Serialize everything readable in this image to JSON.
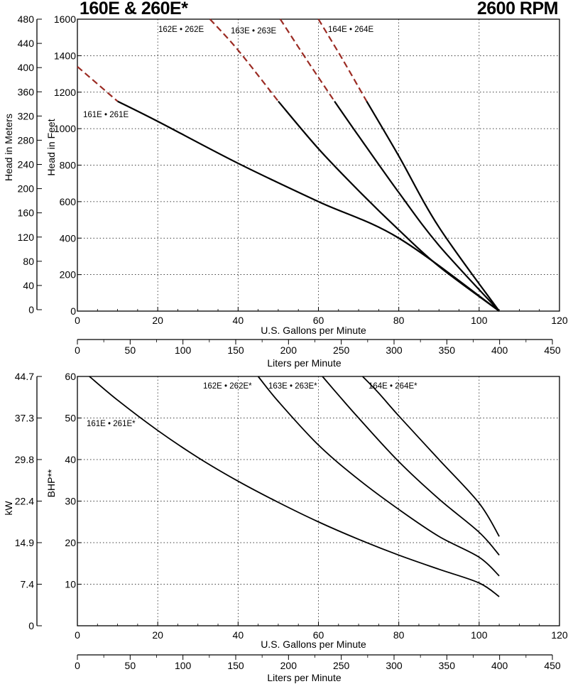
{
  "header": {
    "title": "160E & 260E*",
    "speed": "2600 RPM"
  },
  "chart_data": [
    {
      "type": "line",
      "title": "160E & 260E*",
      "xlabel": "U.S. Gallons per Minute",
      "ylabel": "Head in Feet",
      "ylabel_secondary": "Head in Meters",
      "xlabel_secondary": "Liters per Minute",
      "xlim": [
        0,
        120
      ],
      "ylim": [
        0,
        1600
      ],
      "x_ticks": [
        0,
        20,
        40,
        60,
        80,
        100,
        120
      ],
      "y_ticks": [
        0,
        200,
        400,
        600,
        800,
        1000,
        1200,
        1400,
        1600
      ],
      "y2_ticks": [
        "0",
        "40",
        "80",
        "120",
        "160",
        "200",
        "240",
        "280",
        "320",
        "360",
        "400",
        "440",
        "480"
      ],
      "x2_ticks": [
        "0",
        "50",
        "100",
        "150",
        "200",
        "250",
        "300",
        "350",
        "400",
        "450"
      ],
      "grid": true,
      "series": [
        {
          "name": "161E • 261E",
          "solid": {
            "x": [
              10,
              20,
              40,
              60,
              80,
              105
            ],
            "y": [
              1150,
              1040,
              810,
              600,
              400,
              0
            ]
          },
          "dashed": {
            "x": [
              0,
              10
            ],
            "y": [
              1340,
              1150
            ]
          }
        },
        {
          "name": "162E • 262E",
          "solid": {
            "x": [
              50,
              60,
              70,
              80,
              90,
              105
            ],
            "y": [
              1150,
              890,
              660,
              445,
              245,
              0
            ]
          },
          "dashed": {
            "x": [
              33,
              40,
              50
            ],
            "y": [
              1600,
              1430,
              1150
            ]
          }
        },
        {
          "name": "163E • 263E",
          "solid": {
            "x": [
              64,
              70,
              80,
              90,
              105
            ],
            "y": [
              1150,
              960,
              650,
              360,
              0
            ]
          },
          "dashed": {
            "x": [
              50.5,
              57,
              64
            ],
            "y": [
              1600,
              1380,
              1150
            ]
          }
        },
        {
          "name": "164E • 264E",
          "solid": {
            "x": [
              72,
              80,
              90,
              105
            ],
            "y": [
              1150,
              850,
              460,
              0
            ]
          },
          "dashed": {
            "x": [
              60,
              66,
              72
            ],
            "y": [
              1600,
              1380,
              1150
            ]
          }
        }
      ]
    },
    {
      "type": "line",
      "xlabel": "U.S. Gallons per Minute",
      "ylabel": "BHP**",
      "ylabel_secondary": "kW",
      "xlabel_secondary": "Liters per Minute",
      "xlim": [
        0,
        120
      ],
      "ylim": [
        0,
        60
      ],
      "x_ticks": [
        0,
        20,
        40,
        60,
        80,
        100,
        120
      ],
      "y_ticks": [
        10,
        20,
        30,
        40,
        50,
        60
      ],
      "y2_ticks": [
        "0",
        "7.4",
        "14.9",
        "22.4",
        "29.8",
        "37.3",
        "44.7"
      ],
      "x2_ticks": [
        "0",
        "50",
        "100",
        "150",
        "200",
        "250",
        "300",
        "350",
        "400",
        "450"
      ],
      "grid": true,
      "series": [
        {
          "name": "161E • 261E*",
          "x": [
            3,
            10,
            20,
            30,
            40,
            50,
            60,
            70,
            80,
            90,
            100,
            105
          ],
          "y": [
            60,
            54.3,
            47,
            40.5,
            34.8,
            29.7,
            25,
            20.8,
            17,
            13.6,
            10.3,
            7
          ]
        },
        {
          "name": "162E • 262E*",
          "x": [
            45,
            50,
            60,
            70,
            80,
            90,
            100,
            105
          ],
          "y": [
            60,
            54,
            43.5,
            35.2,
            28,
            21.5,
            16.5,
            12
          ]
        },
        {
          "name": "163E • 263E*",
          "x": [
            61,
            65,
            70,
            80,
            90,
            100,
            105
          ],
          "y": [
            60,
            55.5,
            50,
            39.5,
            30.5,
            22.5,
            17
          ]
        },
        {
          "name": "164E • 264E*",
          "x": [
            71,
            75,
            80,
            90,
            100,
            105
          ],
          "y": [
            60,
            56,
            50.5,
            40,
            29.5,
            21.5
          ]
        }
      ]
    }
  ]
}
